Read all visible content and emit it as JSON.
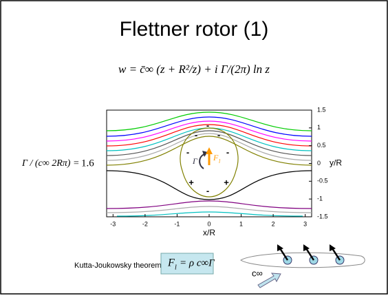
{
  "title": "Flettner rotor (1)",
  "equation": "w = c̄∞ (z + R²/z) + i Γ/(2π) ln z",
  "circulation_ratio": {
    "label": "Γ / (c∞ 2Rπ) =",
    "value": 1.6
  },
  "chart_data": {
    "type": "contour",
    "xlabel": "x/R",
    "ylabel": "y/R",
    "xlim": [
      -3.2,
      3.2
    ],
    "ylim": [
      -1.5,
      1.5
    ],
    "xticks": [
      -3,
      -2,
      -1,
      0,
      1,
      2,
      3
    ],
    "yticks": [
      -1.5,
      -1,
      -0.5,
      0,
      0.5,
      1,
      1.5
    ],
    "signs": [
      "-",
      "-",
      "-",
      "-",
      "-",
      "+",
      "+",
      "-"
    ],
    "gamma_label": "Γ",
    "force_label": "F",
    "force_subscript": "l"
  },
  "theorem": {
    "label": "Kutta-Joukowsky theorem:",
    "lhs": "F",
    "lhs_subscript": "l",
    "rhs": "= ρ c∞Γ"
  },
  "ship_label": "c∞"
}
